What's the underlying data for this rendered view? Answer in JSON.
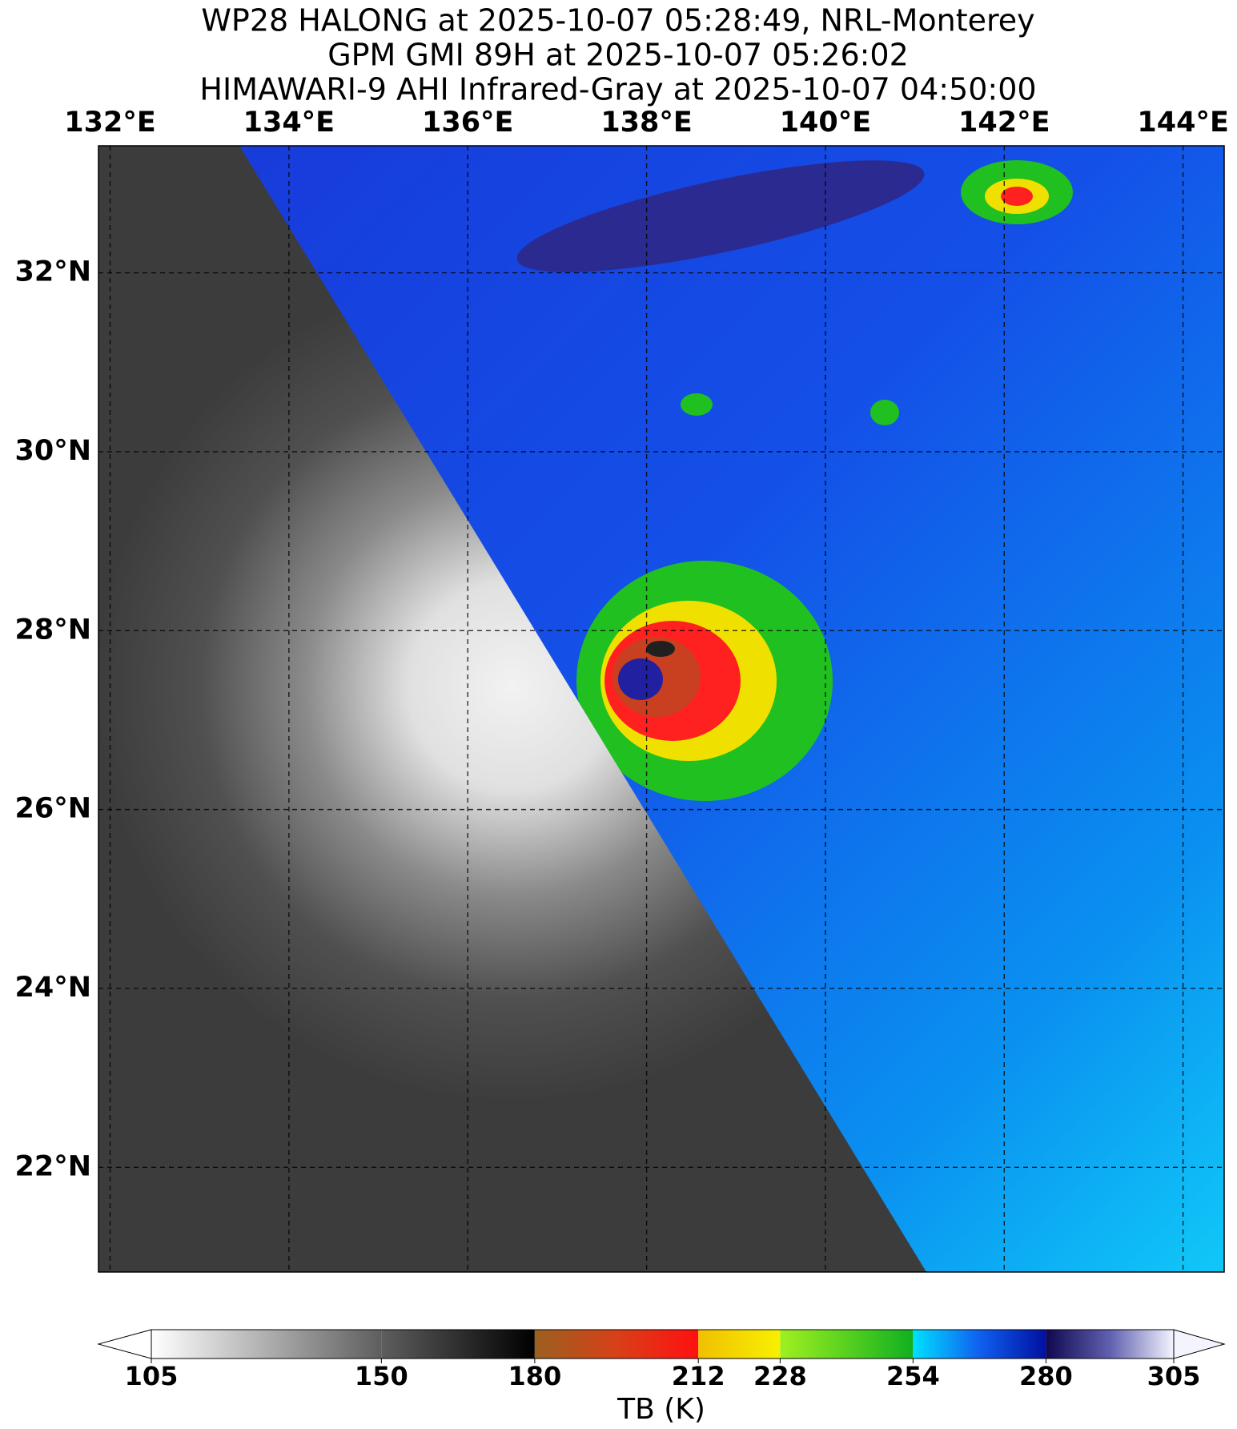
{
  "title": [
    "WP28 HALONG at 2025-10-07 05:28:49, NRL-Monterey",
    "GPM GMI 89H at 2025-10-07 05:26:02",
    "HIMAWARI-9 AHI Infrared-Gray at 2025-10-07 04:50:00"
  ],
  "map": {
    "xlim": [
      131.87,
      144.46
    ],
    "ylim": [
      20.83,
      33.42
    ],
    "xticks": [
      {
        "value": 132,
        "label": "132°E"
      },
      {
        "value": 134,
        "label": "134°E"
      },
      {
        "value": 136,
        "label": "136°E"
      },
      {
        "value": 138,
        "label": "138°E"
      },
      {
        "value": 140,
        "label": "140°E"
      },
      {
        "value": 142,
        "label": "142°E"
      },
      {
        "value": 144,
        "label": "144°E"
      }
    ],
    "yticks": [
      {
        "value": 32,
        "label": "32°N"
      },
      {
        "value": 30,
        "label": "30°N"
      },
      {
        "value": 28,
        "label": "28°N"
      },
      {
        "value": 26,
        "label": "26°N"
      },
      {
        "value": 24,
        "label": "24°N"
      },
      {
        "value": 22,
        "label": "22°N"
      }
    ]
  },
  "colorbar": {
    "label": "TB (K)",
    "ticks": [
      105,
      150,
      180,
      212,
      228,
      254,
      280,
      305
    ]
  }
}
